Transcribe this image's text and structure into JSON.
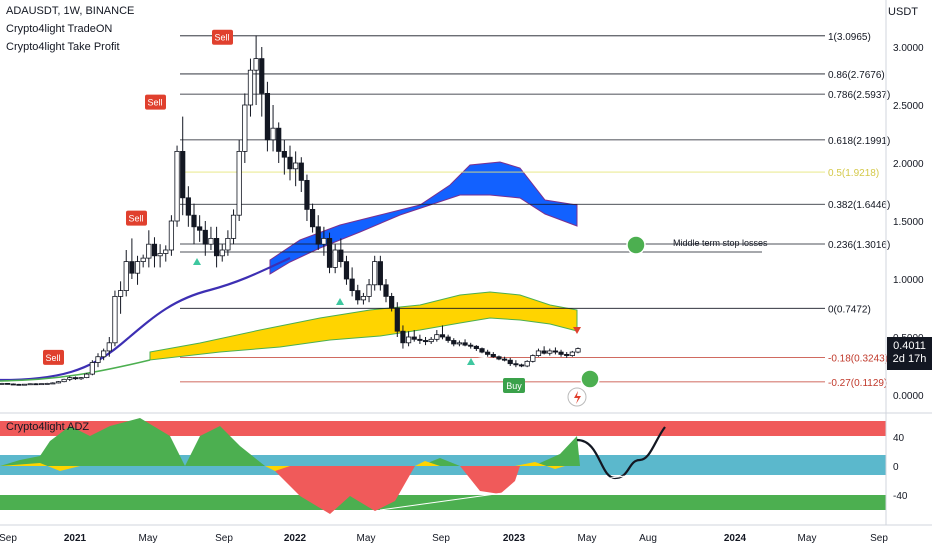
{
  "header": {
    "symbol_line": "ADAUSDT, 1W, BINANCE",
    "indicator_1": "Crypto4light TradeON",
    "indicator_2": "Crypto4light Take Profit",
    "sub_indicator": "Crypto4light ADZ",
    "unit": "USDT"
  },
  "last_price": {
    "value": "0.4011",
    "countdown": "2d 17h"
  },
  "colors": {
    "up": "#ffffff",
    "down": "#131722",
    "blue_band": "#1261ff",
    "yellow_band": "#ffd400",
    "green_line": "#4caf50",
    "sell_tag": "#e0402e",
    "buy_tag": "#3aa14a",
    "osc_red_zone": "#f05a5a",
    "osc_cyan_zone": "#5bb8cc",
    "osc_green_zone": "#4caf50"
  },
  "chart_data": [
    {
      "type": "candlestick",
      "title": "ADAUSDT, 1W, BINANCE",
      "ylabel": "USDT",
      "ylim": [
        0,
        3.3
      ],
      "y_ticks": [
        "3.0000",
        "2.5000",
        "2.0000",
        "1.5000",
        "1.0000",
        "0.5000",
        "0.0000"
      ],
      "x_ticks": [
        "Sep",
        "2021",
        "May",
        "Sep",
        "2022",
        "May",
        "Sep",
        "2023",
        "May",
        "Aug",
        "2024",
        "May",
        "Sep"
      ],
      "fib_levels": [
        {
          "label": "1(3.0965)",
          "value": 3.0965
        },
        {
          "label": "0.86(2.7676)",
          "value": 2.7676
        },
        {
          "label": "0.786(2.5937)",
          "value": 2.5937
        },
        {
          "label": "0.618(2.1991)",
          "value": 2.1991
        },
        {
          "label": "0.5(1.9218)",
          "value": 1.9218
        },
        {
          "label": "0.382(1.6446)",
          "value": 1.6446
        },
        {
          "label": "0.236(1.3016)",
          "value": 1.3016
        },
        {
          "label": "0(0.7472)",
          "value": 0.7472
        },
        {
          "label": "-0.18(0.3243)",
          "value": 0.3243
        },
        {
          "label": "-0.27(0.1129)",
          "value": 0.1129
        }
      ],
      "annotations": [
        {
          "text": "Middle term stop losses",
          "value": 1.3016
        },
        {
          "text": "Sell",
          "value": 0.32
        },
        {
          "text": "Sell",
          "value": 1.52
        },
        {
          "text": "Sell",
          "value": 2.52
        },
        {
          "text": "Sell",
          "value": 3.08
        },
        {
          "text": "Buy",
          "value": 0.09
        }
      ],
      "candles": [
        [
          0.1,
          0.105,
          0.095,
          0.1
        ],
        [
          0.1,
          0.102,
          0.09,
          0.095
        ],
        [
          0.095,
          0.1,
          0.088,
          0.092
        ],
        [
          0.092,
          0.096,
          0.085,
          0.09
        ],
        [
          0.09,
          0.095,
          0.086,
          0.093
        ],
        [
          0.093,
          0.1,
          0.09,
          0.097
        ],
        [
          0.097,
          0.102,
          0.09,
          0.094
        ],
        [
          0.094,
          0.099,
          0.09,
          0.098
        ],
        [
          0.098,
          0.105,
          0.095,
          0.1
        ],
        [
          0.1,
          0.11,
          0.097,
          0.104
        ],
        [
          0.104,
          0.12,
          0.1,
          0.115
        ],
        [
          0.115,
          0.14,
          0.11,
          0.135
        ],
        [
          0.135,
          0.16,
          0.12,
          0.15
        ],
        [
          0.15,
          0.16,
          0.13,
          0.14
        ],
        [
          0.14,
          0.155,
          0.13,
          0.15
        ],
        [
          0.15,
          0.19,
          0.145,
          0.18
        ],
        [
          0.18,
          0.3,
          0.17,
          0.28
        ],
        [
          0.28,
          0.36,
          0.24,
          0.33
        ],
        [
          0.33,
          0.4,
          0.3,
          0.38
        ],
        [
          0.38,
          0.5,
          0.33,
          0.45
        ],
        [
          0.45,
          0.9,
          0.42,
          0.85
        ],
        [
          0.85,
          0.98,
          0.7,
          0.9
        ],
        [
          0.9,
          1.25,
          0.85,
          1.15
        ],
        [
          1.15,
          1.35,
          1.0,
          1.05
        ],
        [
          1.05,
          1.2,
          0.95,
          1.15
        ],
        [
          1.15,
          1.21,
          1.1,
          1.18
        ],
        [
          1.18,
          1.42,
          1.1,
          1.3
        ],
        [
          1.3,
          1.36,
          1.1,
          1.2
        ],
        [
          1.2,
          1.3,
          1.1,
          1.22
        ],
        [
          1.22,
          1.29,
          1.15,
          1.25
        ],
        [
          1.25,
          1.55,
          1.2,
          1.5
        ],
        [
          1.5,
          2.15,
          1.45,
          2.1
        ],
        [
          2.1,
          2.4,
          1.55,
          1.7
        ],
        [
          1.7,
          1.8,
          1.45,
          1.55
        ],
        [
          1.55,
          1.65,
          1.3,
          1.45
        ],
        [
          1.45,
          1.55,
          1.32,
          1.42
        ],
        [
          1.42,
          1.5,
          1.2,
          1.3
        ],
        [
          1.3,
          1.45,
          1.25,
          1.35
        ],
        [
          1.35,
          1.45,
          1.1,
          1.2
        ],
        [
          1.2,
          1.3,
          1.15,
          1.25
        ],
        [
          1.25,
          1.42,
          1.2,
          1.35
        ],
        [
          1.35,
          1.6,
          1.3,
          1.55
        ],
        [
          1.55,
          2.2,
          1.5,
          2.1
        ],
        [
          2.1,
          2.6,
          2.0,
          2.5
        ],
        [
          2.5,
          2.9,
          2.4,
          2.8
        ],
        [
          2.8,
          3.1,
          2.5,
          2.9
        ],
        [
          2.9,
          3.0,
          2.4,
          2.6
        ],
        [
          2.6,
          2.7,
          2.1,
          2.2
        ],
        [
          2.2,
          2.5,
          2.1,
          2.3
        ],
        [
          2.3,
          2.35,
          2.0,
          2.1
        ],
        [
          2.1,
          2.2,
          1.9,
          2.05
        ],
        [
          2.05,
          2.15,
          1.85,
          1.95
        ],
        [
          1.95,
          2.1,
          1.8,
          2.0
        ],
        [
          2.0,
          2.05,
          1.75,
          1.85
        ],
        [
          1.85,
          1.9,
          1.5,
          1.6
        ],
        [
          1.6,
          1.65,
          1.4,
          1.45
        ],
        [
          1.45,
          1.55,
          1.25,
          1.3
        ],
        [
          1.3,
          1.45,
          1.2,
          1.35
        ],
        [
          1.35,
          1.4,
          1.05,
          1.1
        ],
        [
          1.1,
          1.3,
          1.05,
          1.25
        ],
        [
          1.25,
          1.35,
          1.1,
          1.15
        ],
        [
          1.15,
          1.2,
          0.95,
          1.0
        ],
        [
          1.0,
          1.1,
          0.85,
          0.9
        ],
        [
          0.9,
          0.95,
          0.78,
          0.82
        ],
        [
          0.82,
          0.88,
          0.78,
          0.85
        ],
        [
          0.85,
          1.0,
          0.8,
          0.95
        ],
        [
          0.95,
          1.2,
          0.9,
          1.15
        ],
        [
          1.15,
          1.2,
          0.9,
          0.95
        ],
        [
          0.95,
          1.0,
          0.8,
          0.85
        ],
        [
          0.85,
          0.88,
          0.72,
          0.75
        ],
        [
          0.75,
          0.8,
          0.5,
          0.55
        ],
        [
          0.55,
          0.6,
          0.4,
          0.45
        ],
        [
          0.45,
          0.55,
          0.42,
          0.5
        ],
        [
          0.5,
          0.56,
          0.46,
          0.48
        ],
        [
          0.48,
          0.52,
          0.44,
          0.47
        ],
        [
          0.47,
          0.5,
          0.43,
          0.46
        ],
        [
          0.46,
          0.5,
          0.44,
          0.48
        ],
        [
          0.48,
          0.56,
          0.46,
          0.52
        ],
        [
          0.52,
          0.6,
          0.48,
          0.5
        ],
        [
          0.5,
          0.52,
          0.45,
          0.47
        ],
        [
          0.47,
          0.49,
          0.42,
          0.44
        ],
        [
          0.44,
          0.47,
          0.42,
          0.45
        ],
        [
          0.45,
          0.48,
          0.42,
          0.43
        ],
        [
          0.43,
          0.45,
          0.4,
          0.42
        ],
        [
          0.42,
          0.43,
          0.38,
          0.4
        ],
        [
          0.4,
          0.41,
          0.36,
          0.37
        ],
        [
          0.37,
          0.39,
          0.33,
          0.35
        ],
        [
          0.35,
          0.37,
          0.32,
          0.33
        ],
        [
          0.33,
          0.34,
          0.3,
          0.31
        ],
        [
          0.31,
          0.33,
          0.29,
          0.3
        ],
        [
          0.3,
          0.32,
          0.25,
          0.27
        ],
        [
          0.27,
          0.3,
          0.24,
          0.26
        ],
        [
          0.26,
          0.27,
          0.24,
          0.25
        ],
        [
          0.25,
          0.3,
          0.24,
          0.29
        ],
        [
          0.29,
          0.35,
          0.28,
          0.34
        ],
        [
          0.34,
          0.4,
          0.33,
          0.38
        ],
        [
          0.38,
          0.42,
          0.35,
          0.36
        ],
        [
          0.36,
          0.4,
          0.34,
          0.38
        ],
        [
          0.38,
          0.41,
          0.35,
          0.37
        ],
        [
          0.37,
          0.39,
          0.33,
          0.35
        ],
        [
          0.35,
          0.37,
          0.32,
          0.34
        ],
        [
          0.34,
          0.38,
          0.33,
          0.37
        ],
        [
          0.37,
          0.41,
          0.36,
          0.4
        ]
      ]
    },
    {
      "type": "area",
      "title": "Crypto4light ADZ",
      "ylim": [
        -55,
        55
      ],
      "y_ticks": [
        "40",
        "0",
        "-40"
      ]
    }
  ]
}
